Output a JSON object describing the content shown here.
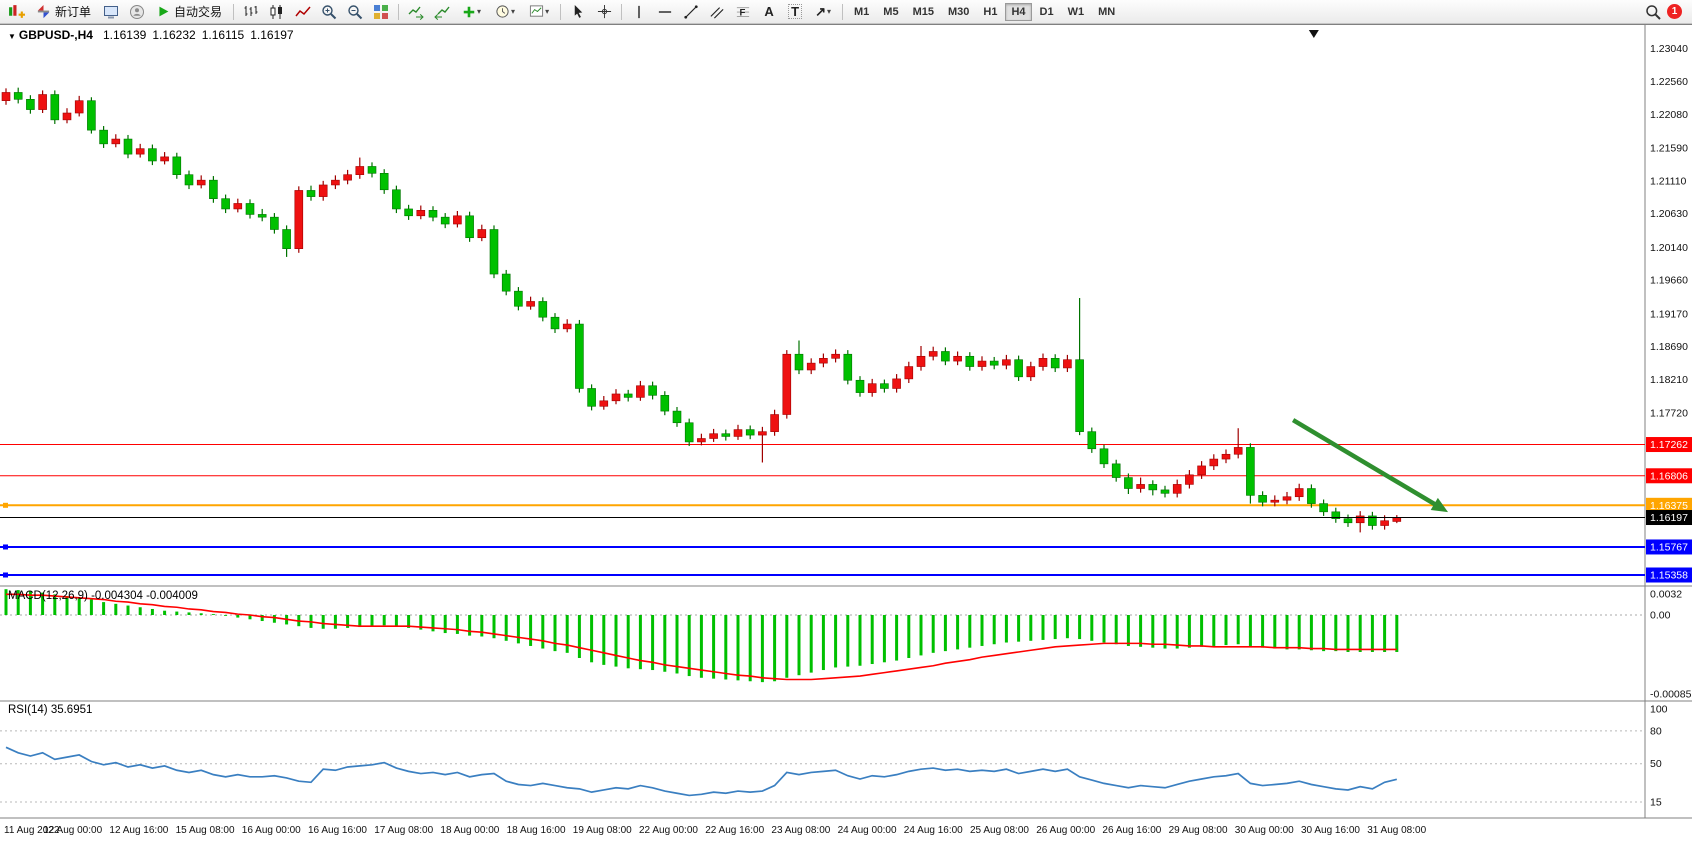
{
  "toolbar": {
    "new_order_label": "新订单",
    "autotrading_label": "自动交易",
    "timeframes": [
      "M1",
      "M5",
      "M15",
      "M30",
      "H1",
      "H4",
      "D1",
      "W1",
      "MN"
    ],
    "active_timeframe": "H4",
    "notification_count": "1"
  },
  "chart_header": {
    "symbol_period": "GBPUSD-,H4",
    "open": "1.16139",
    "high": "1.16232",
    "low": "1.16115",
    "close": "1.16197"
  },
  "chart_data": {
    "type": "candlestick",
    "symbol": "GBPUSD-",
    "timeframe": "H4",
    "price_axis_labels": [
      "1.23040",
      "1.22560",
      "1.22080",
      "1.21590",
      "1.21110",
      "1.20630",
      "1.20140",
      "1.19660",
      "1.19170",
      "1.18690",
      "1.18210",
      "1.17720"
    ],
    "time_labels": [
      "11 Aug 2022",
      "12 Aug 00:00",
      "12 Aug 16:00",
      "15 Aug 08:00",
      "16 Aug 00:00",
      "16 Aug 16:00",
      "17 Aug 08:00",
      "18 Aug 00:00",
      "18 Aug 16:00",
      "19 Aug 08:00",
      "22 Aug 00:00",
      "22 Aug 16:00",
      "23 Aug 08:00",
      "24 Aug 00:00",
      "24 Aug 16:00",
      "25 Aug 08:00",
      "26 Aug 00:00",
      "26 Aug 16:00",
      "29 Aug 08:00",
      "30 Aug 00:00",
      "30 Aug 16:00",
      "31 Aug 08:00"
    ],
    "hlines": [
      {
        "price": 1.17262,
        "label": "1.17262",
        "color": "#ff0000",
        "width": 1
      },
      {
        "price": 1.16806,
        "label": "1.16806",
        "color": "#ff0000",
        "width": 1
      },
      {
        "price": 1.16375,
        "label": "1.16375",
        "color": "#ffa500",
        "width": 2
      },
      {
        "price": 1.16197,
        "label": "1.16197",
        "color": "#000000",
        "width": 1
      },
      {
        "price": 1.15767,
        "label": "1.15767",
        "color": "#0000ff",
        "width": 2
      },
      {
        "price": 1.15358,
        "label": "1.15358",
        "color": "#0000ff",
        "width": 2
      }
    ],
    "current_price": "1.16197",
    "arrow_annotation": {
      "from_index": 105.5,
      "from_price": 1.17619,
      "to_index": 118.2,
      "to_price": 1.16276
    },
    "top_marker_index": 107.2,
    "colors": {
      "up": "#ee1111",
      "up_edge": "#a00000",
      "down": "#00c000",
      "down_edge": "#007300",
      "macd_hist": "#00c000",
      "macd_signal": "#ff0000",
      "rsi_line": "#3a7fc1",
      "arrow": "#2f8f2f"
    },
    "candles": [
      [
        1.2228,
        1.2246,
        1.2222,
        1.224
      ],
      [
        1.224,
        1.2247,
        1.2224,
        1.223
      ],
      [
        1.223,
        1.2236,
        1.2209,
        1.2215
      ],
      [
        1.2215,
        1.2243,
        1.221,
        1.2237
      ],
      [
        1.2237,
        1.2243,
        1.2194,
        1.22
      ],
      [
        1.22,
        1.2217,
        1.2195,
        1.221
      ],
      [
        1.221,
        1.2235,
        1.2205,
        1.2228
      ],
      [
        1.2228,
        1.2233,
        1.218,
        1.2185
      ],
      [
        1.2185,
        1.2191,
        1.2159,
        1.2165
      ],
      [
        1.2165,
        1.2179,
        1.216,
        1.2172
      ],
      [
        1.2172,
        1.2178,
        1.2144,
        1.215
      ],
      [
        1.215,
        1.2165,
        1.2145,
        1.2158
      ],
      [
        1.2158,
        1.2164,
        1.2134,
        1.214
      ],
      [
        1.214,
        1.2153,
        1.2135,
        1.2146
      ],
      [
        1.2146,
        1.2152,
        1.2114,
        1.212
      ],
      [
        1.212,
        1.2126,
        1.2099,
        1.2105
      ],
      [
        1.2105,
        1.2119,
        1.21,
        1.2112
      ],
      [
        1.2112,
        1.2118,
        1.2079,
        1.2085
      ],
      [
        1.2085,
        1.2091,
        1.2064,
        1.207
      ],
      [
        1.207,
        1.2085,
        1.2065,
        1.2078
      ],
      [
        1.2078,
        1.2084,
        1.2056,
        1.2062
      ],
      [
        1.2062,
        1.207,
        1.2052,
        1.2058
      ],
      [
        1.2058,
        1.2064,
        1.2034,
        1.204
      ],
      [
        1.204,
        1.2046,
        1.2,
        1.2012
      ],
      [
        1.2012,
        1.2103,
        1.2006,
        1.2097
      ],
      [
        1.2097,
        1.2104,
        1.2082,
        1.2088
      ],
      [
        1.2088,
        1.2111,
        1.2082,
        1.2105
      ],
      [
        1.2105,
        1.2119,
        1.2099,
        1.2112
      ],
      [
        1.2112,
        1.2127,
        1.2106,
        1.212
      ],
      [
        1.212,
        1.2145,
        1.2114,
        1.2132
      ],
      [
        1.2132,
        1.2138,
        1.2116,
        1.2122
      ],
      [
        1.2122,
        1.2128,
        1.2092,
        1.2098
      ],
      [
        1.2098,
        1.2104,
        1.2064,
        1.207
      ],
      [
        1.207,
        1.2076,
        1.2054,
        1.206
      ],
      [
        1.206,
        1.2075,
        1.2055,
        1.2068
      ],
      [
        1.2068,
        1.2074,
        1.2052,
        1.2058
      ],
      [
        1.2058,
        1.2064,
        1.2042,
        1.2048
      ],
      [
        1.2048,
        1.2067,
        1.2043,
        1.206
      ],
      [
        1.206,
        1.2066,
        1.2022,
        1.2028
      ],
      [
        1.2028,
        1.2047,
        1.2023,
        1.204
      ],
      [
        1.204,
        1.2046,
        1.1969,
        1.1975
      ],
      [
        1.1975,
        1.1981,
        1.1944,
        1.195
      ],
      [
        1.195,
        1.1956,
        1.1922,
        1.1928
      ],
      [
        1.1928,
        1.1942,
        1.1923,
        1.1935
      ],
      [
        1.1935,
        1.1941,
        1.1906,
        1.1912
      ],
      [
        1.1912,
        1.1918,
        1.1889,
        1.1895
      ],
      [
        1.1895,
        1.1909,
        1.189,
        1.1902
      ],
      [
        1.1902,
        1.1908,
        1.1802,
        1.1808
      ],
      [
        1.1808,
        1.1814,
        1.1776,
        1.1782
      ],
      [
        1.1782,
        1.1797,
        1.1777,
        1.179
      ],
      [
        1.179,
        1.1807,
        1.1785,
        1.18
      ],
      [
        1.18,
        1.1806,
        1.1789,
        1.1795
      ],
      [
        1.1795,
        1.1819,
        1.179,
        1.1812
      ],
      [
        1.1812,
        1.1818,
        1.1792,
        1.1798
      ],
      [
        1.1798,
        1.1804,
        1.1769,
        1.1775
      ],
      [
        1.1775,
        1.1781,
        1.1752,
        1.1758
      ],
      [
        1.1758,
        1.1764,
        1.1724,
        1.173
      ],
      [
        1.173,
        1.1742,
        1.1725,
        1.1735
      ],
      [
        1.1735,
        1.1749,
        1.173,
        1.1742
      ],
      [
        1.1742,
        1.1748,
        1.1732,
        1.1738
      ],
      [
        1.1738,
        1.1755,
        1.1733,
        1.1748
      ],
      [
        1.1748,
        1.1754,
        1.1734,
        1.174
      ],
      [
        1.174,
        1.1752,
        1.17,
        1.1745
      ],
      [
        1.1745,
        1.1777,
        1.1739,
        1.177
      ],
      [
        1.177,
        1.1864,
        1.1764,
        1.1858
      ],
      [
        1.1858,
        1.1878,
        1.1829,
        1.1835
      ],
      [
        1.1835,
        1.1852,
        1.1829,
        1.1845
      ],
      [
        1.1845,
        1.1859,
        1.1839,
        1.1852
      ],
      [
        1.1852,
        1.1865,
        1.1846,
        1.1858
      ],
      [
        1.1858,
        1.1864,
        1.1814,
        1.182
      ],
      [
        1.182,
        1.1826,
        1.1796,
        1.1802
      ],
      [
        1.1802,
        1.1822,
        1.1796,
        1.1815
      ],
      [
        1.1815,
        1.1821,
        1.1802,
        1.1808
      ],
      [
        1.1808,
        1.1829,
        1.1802,
        1.1822
      ],
      [
        1.1822,
        1.1847,
        1.1816,
        1.184
      ],
      [
        1.184,
        1.187,
        1.1834,
        1.1855
      ],
      [
        1.1855,
        1.1869,
        1.1849,
        1.1862
      ],
      [
        1.1862,
        1.1868,
        1.1842,
        1.1848
      ],
      [
        1.1848,
        1.1862,
        1.1842,
        1.1855
      ],
      [
        1.1855,
        1.1861,
        1.1834,
        1.184
      ],
      [
        1.184,
        1.1855,
        1.1834,
        1.1848
      ],
      [
        1.1848,
        1.1854,
        1.1836,
        1.1842
      ],
      [
        1.1842,
        1.1857,
        1.1836,
        1.185
      ],
      [
        1.185,
        1.1856,
        1.1819,
        1.1825
      ],
      [
        1.1825,
        1.1847,
        1.1819,
        1.184
      ],
      [
        1.184,
        1.1859,
        1.1834,
        1.1852
      ],
      [
        1.1852,
        1.1858,
        1.1832,
        1.1838
      ],
      [
        1.1838,
        1.1857,
        1.1832,
        1.185
      ],
      [
        1.185,
        1.194,
        1.174,
        1.1745
      ],
      [
        1.1745,
        1.1751,
        1.1714,
        1.172
      ],
      [
        1.172,
        1.1726,
        1.1692,
        1.1698
      ],
      [
        1.1698,
        1.1704,
        1.1672,
        1.1678
      ],
      [
        1.1678,
        1.1684,
        1.1654,
        1.1662
      ],
      [
        1.1662,
        1.1678,
        1.1656,
        1.1668
      ],
      [
        1.1668,
        1.1674,
        1.1652,
        1.166
      ],
      [
        1.166,
        1.1666,
        1.1649,
        1.1655
      ],
      [
        1.1655,
        1.1675,
        1.1649,
        1.1668
      ],
      [
        1.1668,
        1.1689,
        1.1662,
        1.1682
      ],
      [
        1.1682,
        1.1702,
        1.1676,
        1.1695
      ],
      [
        1.1695,
        1.1712,
        1.1689,
        1.1705
      ],
      [
        1.1705,
        1.1719,
        1.1699,
        1.1712
      ],
      [
        1.1712,
        1.175,
        1.1706,
        1.1722
      ],
      [
        1.1722,
        1.1728,
        1.164,
        1.1652
      ],
      [
        1.1652,
        1.1658,
        1.1636,
        1.1642
      ],
      [
        1.1642,
        1.1652,
        1.1636,
        1.1645
      ],
      [
        1.1645,
        1.1657,
        1.1639,
        1.165
      ],
      [
        1.165,
        1.1669,
        1.1644,
        1.1662
      ],
      [
        1.1662,
        1.1668,
        1.1634,
        1.164
      ],
      [
        1.164,
        1.1646,
        1.1622,
        1.1628
      ],
      [
        1.1628,
        1.1634,
        1.1612,
        1.1618
      ],
      [
        1.1618,
        1.1624,
        1.1606,
        1.1612
      ],
      [
        1.1612,
        1.1629,
        1.1598,
        1.1622
      ],
      [
        1.1622,
        1.1628,
        1.1602,
        1.1608
      ],
      [
        1.1608,
        1.1623,
        1.1602,
        1.1615
      ],
      [
        1.16139,
        1.16232,
        1.16115,
        1.16197
      ]
    ],
    "macd": {
      "label": "MACD(12,26,9) -0.004304 -0.004009",
      "axis_labels": [
        "0.0032",
        "0.00",
        "-0.0008529"
      ],
      "histogram": [
        0.003,
        0.0029,
        0.0028,
        0.0026,
        0.0024,
        0.0022,
        0.002,
        0.0018,
        0.0015,
        0.0013,
        0.0011,
        0.0009,
        0.0007,
        0.0005,
        0.0004,
        0.0003,
        0.0002,
        0.0001,
        -0.0001,
        -0.0003,
        -0.0005,
        -0.0007,
        -0.0009,
        -0.0011,
        -0.0013,
        -0.0015,
        -0.0016,
        -0.0016,
        -0.0015,
        -0.0014,
        -0.0013,
        -0.0012,
        -0.0013,
        -0.0015,
        -0.0017,
        -0.0019,
        -0.0021,
        -0.0022,
        -0.0024,
        -0.0025,
        -0.0027,
        -0.003,
        -0.0033,
        -0.0036,
        -0.0039,
        -0.0042,
        -0.0044,
        -0.005,
        -0.0055,
        -0.0058,
        -0.006,
        -0.0062,
        -0.0063,
        -0.0064,
        -0.0066,
        -0.0068,
        -0.0071,
        -0.0073,
        -0.0074,
        -0.0075,
        -0.0076,
        -0.0077,
        -0.0078,
        -0.0077,
        -0.0073,
        -0.007,
        -0.0067,
        -0.0064,
        -0.0061,
        -0.006,
        -0.0059,
        -0.0057,
        -0.0055,
        -0.0053,
        -0.005,
        -0.0047,
        -0.0044,
        -0.0042,
        -0.004,
        -0.0038,
        -0.0036,
        -0.0034,
        -0.0032,
        -0.0031,
        -0.003,
        -0.0029,
        -0.0028,
        -0.0027,
        -0.0028,
        -0.003,
        -0.0032,
        -0.0034,
        -0.0036,
        -0.0037,
        -0.0038,
        -0.0039,
        -0.0039,
        -0.0038,
        -0.0037,
        -0.0036,
        -0.0035,
        -0.0034,
        -0.0036,
        -0.0038,
        -0.0039,
        -0.004,
        -0.004,
        -0.0041,
        -0.0042,
        -0.0042,
        -0.0043,
        -0.0043,
        -0.0043,
        -0.0043,
        -0.0043
      ],
      "signal": [
        0.0024,
        0.0024,
        0.0023,
        0.0023,
        0.0022,
        0.0021,
        0.002,
        0.0019,
        0.0018,
        0.0016,
        0.0015,
        0.0013,
        0.0012,
        0.001,
        0.0009,
        0.0007,
        0.0006,
        0.0004,
        0.0003,
        0.0001,
        0.0,
        -0.0002,
        -0.0003,
        -0.0005,
        -0.0007,
        -0.0008,
        -0.001,
        -0.0011,
        -0.0012,
        -0.0013,
        -0.0013,
        -0.0013,
        -0.0013,
        -0.0013,
        -0.0014,
        -0.0015,
        -0.0016,
        -0.0017,
        -0.0019,
        -0.002,
        -0.0022,
        -0.0024,
        -0.0026,
        -0.0028,
        -0.003,
        -0.0033,
        -0.0035,
        -0.0038,
        -0.0041,
        -0.0044,
        -0.0047,
        -0.005,
        -0.0053,
        -0.0055,
        -0.0058,
        -0.006,
        -0.0062,
        -0.0064,
        -0.0066,
        -0.0068,
        -0.007,
        -0.0071,
        -0.0073,
        -0.0074,
        -0.0075,
        -0.0075,
        -0.0075,
        -0.0074,
        -0.0073,
        -0.0072,
        -0.0071,
        -0.0069,
        -0.0067,
        -0.0065,
        -0.0063,
        -0.0061,
        -0.0059,
        -0.0056,
        -0.0054,
        -0.0052,
        -0.0049,
        -0.0047,
        -0.0045,
        -0.0043,
        -0.0041,
        -0.0039,
        -0.0037,
        -0.0036,
        -0.0035,
        -0.0034,
        -0.0033,
        -0.0033,
        -0.0033,
        -0.0033,
        -0.0034,
        -0.0034,
        -0.0035,
        -0.0036,
        -0.0036,
        -0.0037,
        -0.0037,
        -0.0037,
        -0.0037,
        -0.0037,
        -0.0038,
        -0.0038,
        -0.0038,
        -0.0039,
        -0.0039,
        -0.004,
        -0.004,
        -0.004,
        -0.004,
        -0.004,
        -0.004009
      ]
    },
    "rsi": {
      "label": "RSI(14) 35.6951",
      "axis_labels": [
        "100",
        "80",
        "50",
        "15"
      ],
      "levels": [
        80,
        50,
        15
      ],
      "values": [
        65,
        60,
        57,
        60,
        54,
        56,
        58,
        52,
        49,
        51,
        47,
        49,
        46,
        48,
        44,
        42,
        44,
        40,
        38,
        40,
        38,
        38,
        39,
        37,
        34,
        33,
        45,
        44,
        47,
        48,
        49,
        51,
        46,
        43,
        41,
        42,
        40,
        42,
        38,
        40,
        41,
        34,
        31,
        30,
        32,
        30,
        28,
        27,
        24,
        26,
        28,
        27,
        30,
        28,
        25,
        23,
        21,
        22,
        24,
        23,
        25,
        24,
        25,
        30,
        42,
        40,
        42,
        43,
        44,
        39,
        36,
        39,
        38,
        40,
        43,
        45,
        46,
        44,
        45,
        43,
        44,
        43,
        45,
        41,
        43,
        45,
        43,
        45,
        38,
        35,
        32,
        30,
        28,
        30,
        29,
        28,
        31,
        34,
        36,
        38,
        39,
        41,
        32,
        30,
        31,
        32,
        34,
        31,
        29,
        27,
        26,
        29,
        27,
        33,
        35.7
      ]
    }
  }
}
